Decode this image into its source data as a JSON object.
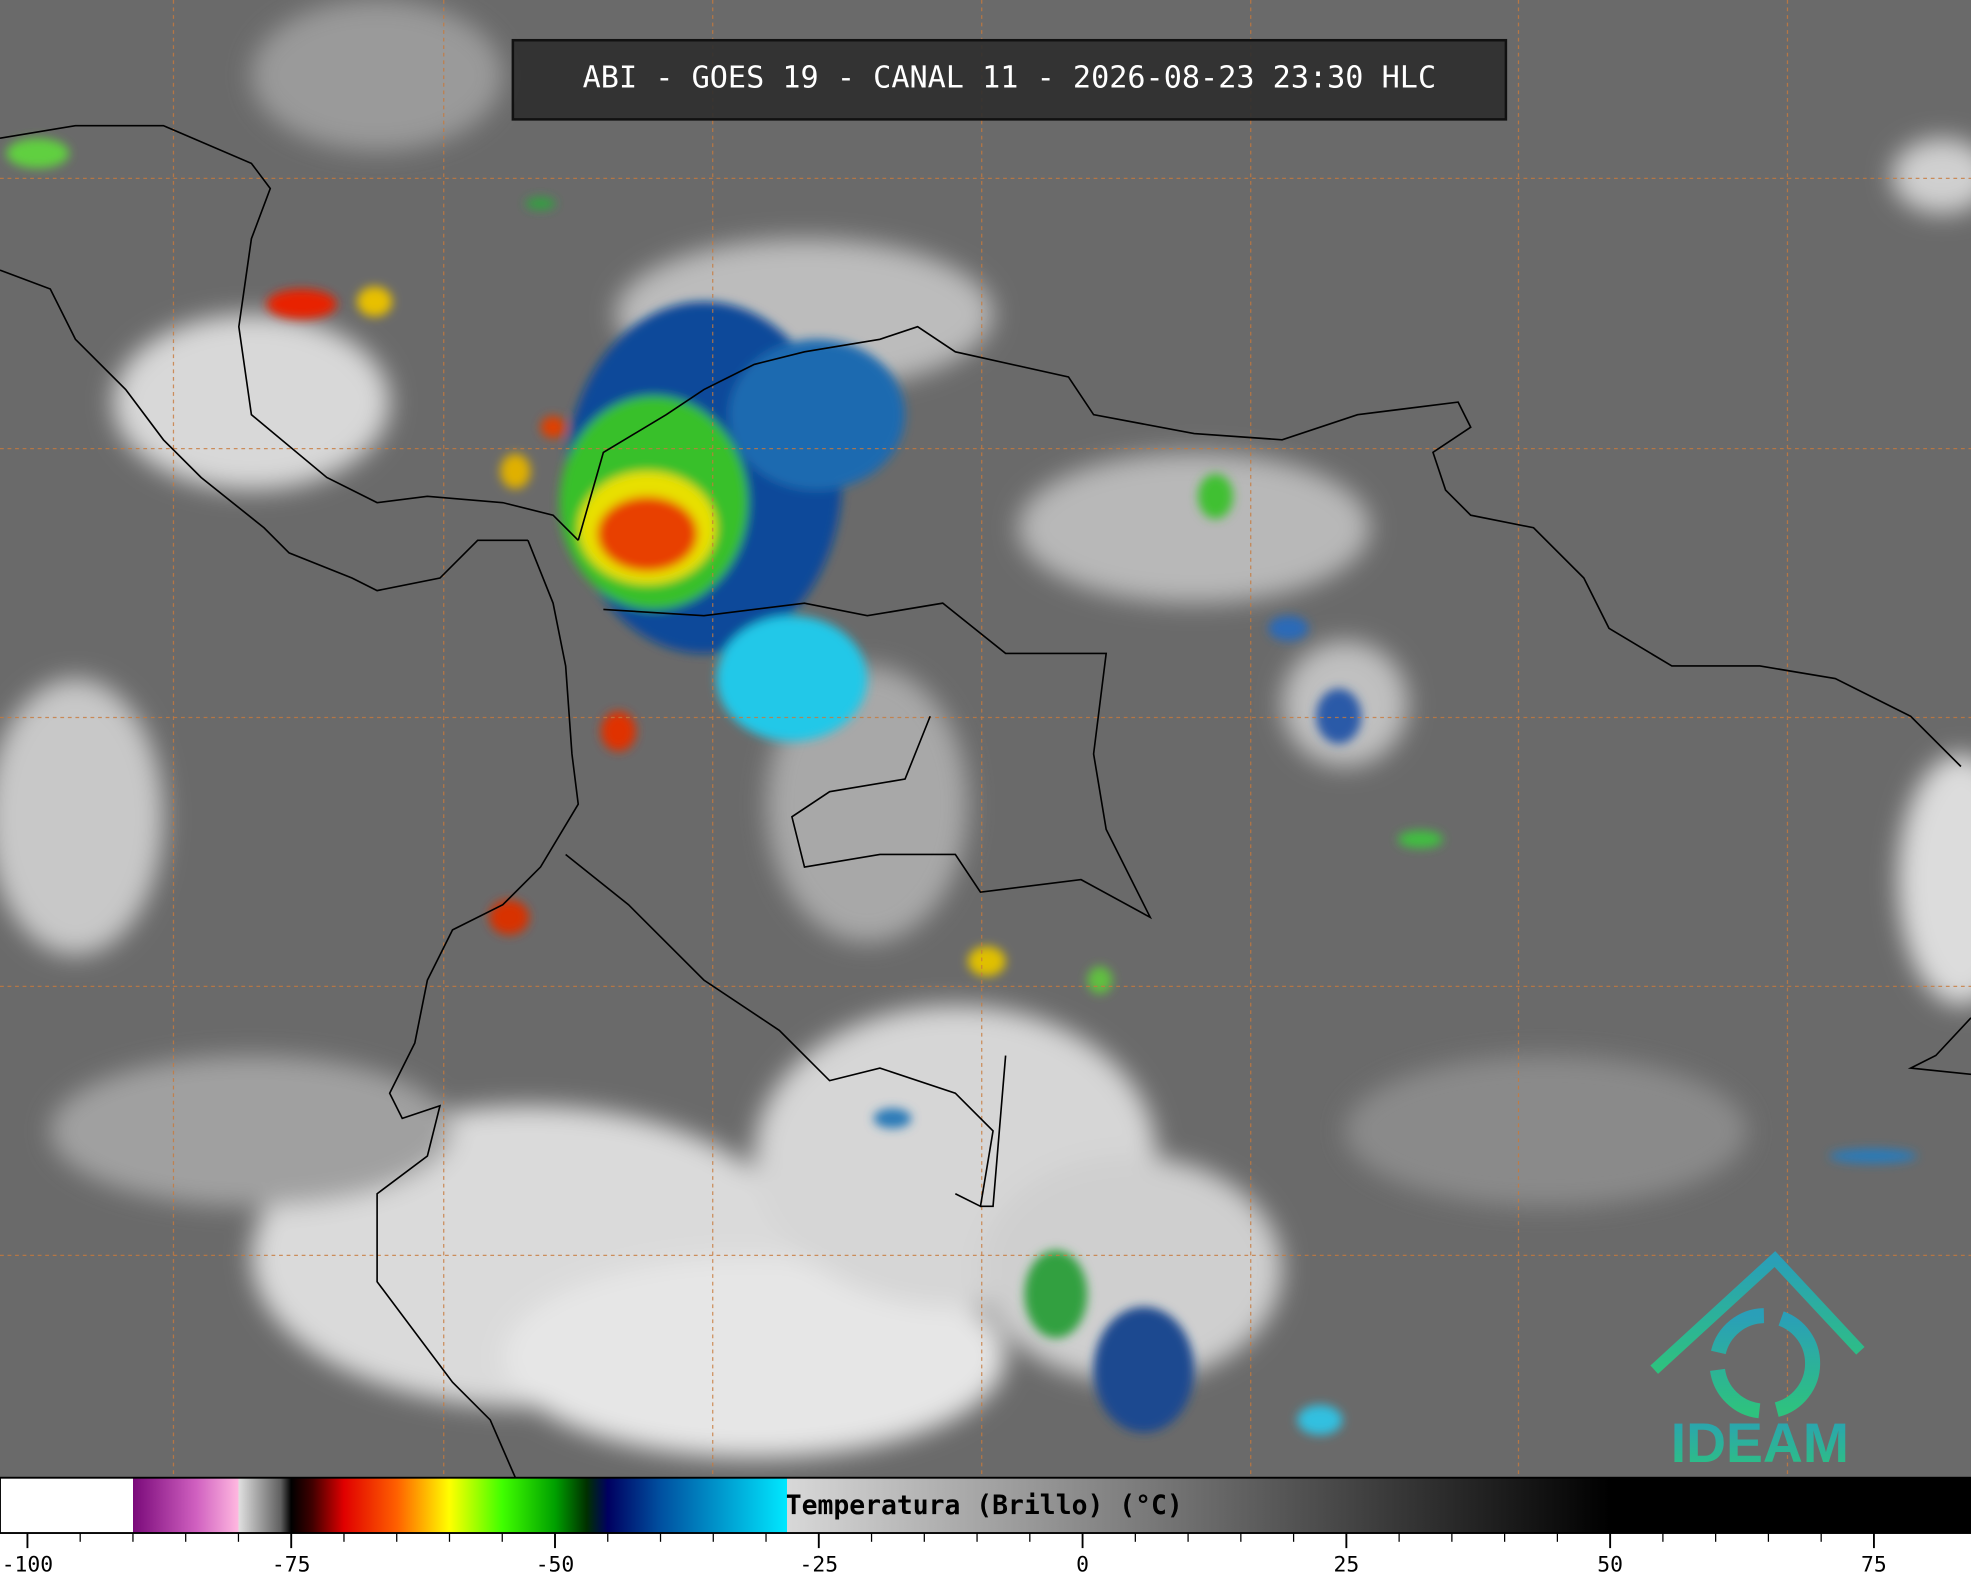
{
  "header": {
    "title": "ABI - GOES 19 - CANAL 11 - 2026-08-23 23:30 HLC"
  },
  "colorbar": {
    "label": "Temperatura (Brillo) (°C)",
    "lim": [
      -102.6,
      84.2
    ],
    "ticks": [
      -100,
      -75,
      -50,
      -25,
      0,
      25,
      50,
      75
    ],
    "stops": [
      [
        -90,
        "#ffffff"
      ],
      [
        -90,
        "#7a0a7a"
      ],
      [
        -84,
        "#d060c0"
      ],
      [
        -80,
        "#ffb8e0"
      ],
      [
        -80,
        "#e0e0e0"
      ],
      [
        -76,
        "#606060"
      ],
      [
        -75,
        "#000000"
      ],
      [
        -73,
        "#400000"
      ],
      [
        -70,
        "#e00000"
      ],
      [
        -65,
        "#ff6000"
      ],
      [
        -60,
        "#ffff00"
      ],
      [
        -55,
        "#40ff00"
      ],
      [
        -50,
        "#00a000"
      ],
      [
        -47,
        "#003000"
      ],
      [
        -45,
        "#000060"
      ],
      [
        -40,
        "#0050a0"
      ],
      [
        -28,
        "#00e8ff"
      ],
      [
        -28,
        "#d8d8d8"
      ],
      [
        50,
        "#000000"
      ]
    ]
  },
  "logo": {
    "text": "IDEAM"
  }
}
